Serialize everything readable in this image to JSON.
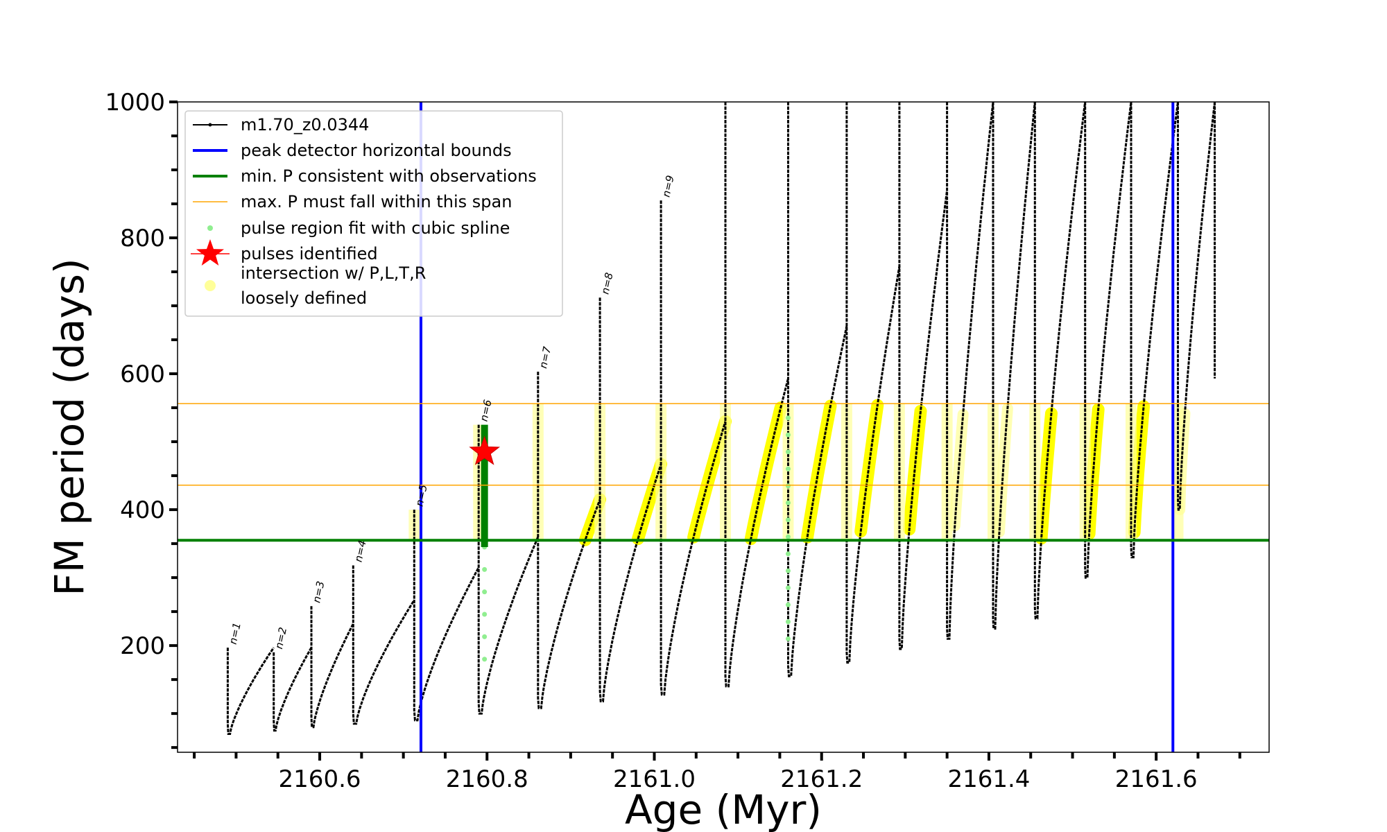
{
  "chart_data": {
    "type": "line",
    "xlabel": "Age (Myr)",
    "ylabel": "FM period (days)",
    "xlim": [
      2160.43,
      2161.735
    ],
    "ylim": [
      43,
      1000
    ],
    "xticks": [
      2160.6,
      2160.8,
      2161.0,
      2161.2,
      2161.4,
      2161.6
    ],
    "xtick_labels": [
      "2160.6",
      "2160.8",
      "2161.0",
      "2161.2",
      "2161.4",
      "2161.6"
    ],
    "yticks": [
      200,
      400,
      600,
      800,
      1000
    ],
    "ytick_labels": [
      "200",
      "400",
      "600",
      "800",
      "1000"
    ],
    "grid": false,
    "legend_position": "top-left",
    "legend": [
      {
        "label": "m1.70_z0.0344",
        "kind": "line-marker",
        "color": "#000000"
      },
      {
        "label": "peak detector horizontal bounds",
        "kind": "line",
        "color": "#0000ff"
      },
      {
        "label": "min. P consistent with observations",
        "kind": "line",
        "color": "#008000"
      },
      {
        "label": "max. P must fall within this span",
        "kind": "thin-line",
        "color": "#ffa500"
      },
      {
        "label": "pulse region fit with cubic spline",
        "kind": "dot",
        "color": "#90ee90"
      },
      {
        "label": "pulses identified",
        "kind": "star",
        "color": "#ff0000"
      },
      {
        "label": "intersection w/ P,L,T,R",
        "label2": "loosely defined",
        "kind": "dot",
        "color": "#ffff99"
      }
    ],
    "vertical_lines": [
      {
        "x": 2160.721,
        "color": "#0000ff"
      },
      {
        "x": 2161.62,
        "color": "#0000ff"
      }
    ],
    "horizontal_lines": [
      {
        "y": 355,
        "color": "#008000"
      },
      {
        "y": 436,
        "color": "#ffa500"
      },
      {
        "y": 556,
        "color": "#ffa500"
      }
    ],
    "pulses": [
      {
        "x_start": 2160.49,
        "x_end": 2160.545,
        "p_min": 70,
        "p_peak": 197,
        "p_spike": 197,
        "label": "n=1"
      },
      {
        "x_start": 2160.545,
        "x_end": 2160.59,
        "p_min": 75,
        "p_peak": 197,
        "p_spike": 190,
        "label": "n=2"
      },
      {
        "x_start": 2160.59,
        "x_end": 2160.64,
        "p_min": 80,
        "p_peak": 232,
        "p_spike": 258,
        "label": "n=3"
      },
      {
        "x_start": 2160.64,
        "x_end": 2160.713,
        "p_min": 85,
        "p_peak": 267,
        "p_spike": 318,
        "label": "n=4"
      },
      {
        "x_start": 2160.713,
        "x_end": 2160.79,
        "p_min": 90,
        "p_peak": 315,
        "p_spike": 400,
        "label": "n=5"
      },
      {
        "x_start": 2160.79,
        "x_end": 2160.861,
        "p_min": 100,
        "p_peak": 360,
        "p_spike": 525,
        "label": "n=6"
      },
      {
        "x_start": 2160.861,
        "x_end": 2160.935,
        "p_min": 108,
        "p_peak": 415,
        "p_spike": 603,
        "label": "n=7"
      },
      {
        "x_start": 2160.935,
        "x_end": 2161.008,
        "p_min": 118,
        "p_peak": 467,
        "p_spike": 712,
        "label": "n=8"
      },
      {
        "x_start": 2161.008,
        "x_end": 2161.085,
        "p_min": 128,
        "p_peak": 530,
        "p_spike": 855,
        "label": "n=9"
      },
      {
        "x_start": 2161.085,
        "x_end": 2161.16,
        "p_min": 140,
        "p_peak": 593,
        "p_spike": 1000,
        "label": ""
      },
      {
        "x_start": 2161.16,
        "x_end": 2161.23,
        "p_min": 155,
        "p_peak": 670,
        "p_spike": 1000,
        "label": ""
      },
      {
        "x_start": 2161.23,
        "x_end": 2161.293,
        "p_min": 175,
        "p_peak": 758,
        "p_spike": 1000,
        "label": ""
      },
      {
        "x_start": 2161.293,
        "x_end": 2161.35,
        "p_min": 195,
        "p_peak": 870,
        "p_spike": 1000,
        "label": ""
      },
      {
        "x_start": 2161.35,
        "x_end": 2161.405,
        "p_min": 210,
        "p_peak": 1000,
        "p_spike": 1000,
        "label": ""
      },
      {
        "x_start": 2161.405,
        "x_end": 2161.455,
        "p_min": 225,
        "p_peak": 1000,
        "p_spike": 1000,
        "label": ""
      },
      {
        "x_start": 2161.455,
        "x_end": 2161.515,
        "p_min": 240,
        "p_peak": 1000,
        "p_spike": 1000,
        "label": ""
      },
      {
        "x_start": 2161.515,
        "x_end": 2161.57,
        "p_min": 300,
        "p_peak": 1000,
        "p_spike": 1000,
        "label": ""
      },
      {
        "x_start": 2161.57,
        "x_end": 2161.626,
        "p_min": 330,
        "p_peak": 1000,
        "p_spike": 1000,
        "label": ""
      },
      {
        "x_start": 2161.626,
        "x_end": 2161.67,
        "p_min": 400,
        "p_peak": 1000,
        "p_spike": 1000,
        "label": ""
      }
    ],
    "final_drop": {
      "x": 2161.67,
      "p_top": 1000,
      "p_end": 593
    },
    "pulse_star": {
      "x": 2160.797,
      "y": 485
    }
  }
}
